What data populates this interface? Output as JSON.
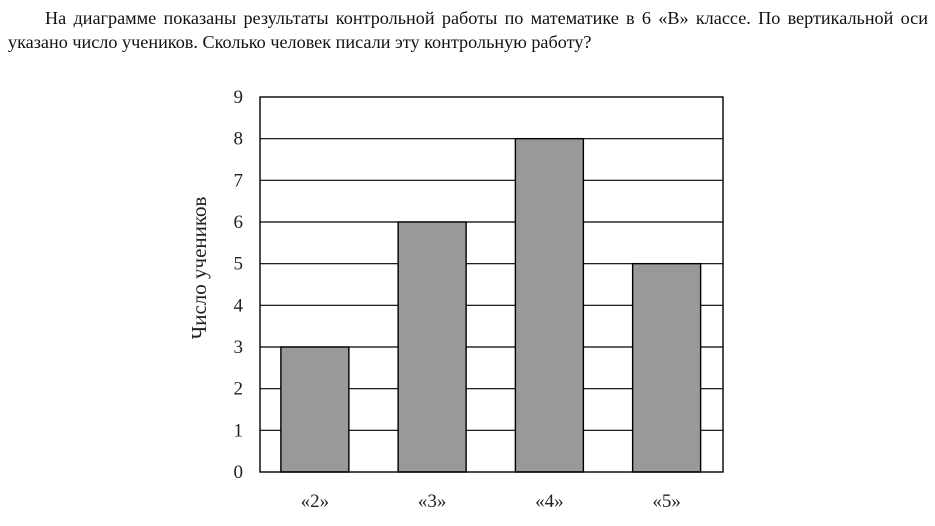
{
  "problem": {
    "text": "На диаграмме показаны результаты контрольной работы по математике в 6 «В» классе. По вертикальной оси указано число учеников. Сколько человек писали эту контрольную работу?"
  },
  "chart_data": {
    "type": "bar",
    "title": "",
    "xlabel": "",
    "ylabel": "Число учеников",
    "categories": [
      "«2»",
      "«3»",
      "«4»",
      "«5»"
    ],
    "values": [
      3,
      6,
      8,
      5
    ],
    "ylim": [
      0,
      9
    ],
    "yticks": [
      "0",
      "1",
      "2",
      "3",
      "4",
      "5",
      "6",
      "7",
      "8",
      "9"
    ],
    "grid": true,
    "bar_color": "#999999"
  }
}
